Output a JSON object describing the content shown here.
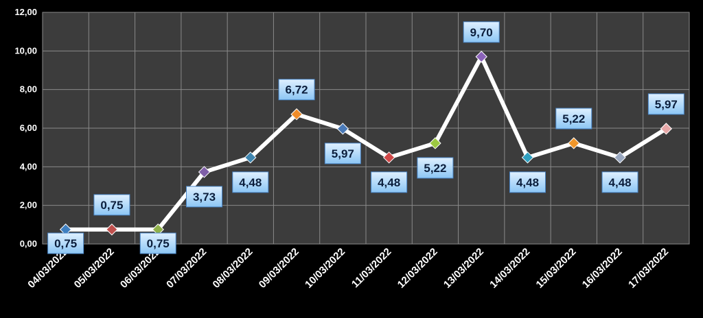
{
  "chart_data": {
    "type": "line",
    "categories": [
      "04/03/2022",
      "05/03/2022",
      "06/03/2022",
      "07/03/2022",
      "08/03/2022",
      "09/03/2022",
      "10/03/2022",
      "11/03/2022",
      "12/03/2022",
      "13/03/2022",
      "14/03/2022",
      "15/03/2022",
      "16/03/2022",
      "17/03/2022"
    ],
    "values": [
      0.75,
      0.75,
      0.75,
      3.73,
      4.48,
      6.72,
      5.97,
      4.48,
      5.22,
      9.7,
      4.48,
      5.22,
      4.48,
      5.97
    ],
    "data_labels": [
      "0,75",
      "0,75",
      "0,75",
      "3,73",
      "4,48",
      "6,72",
      "5,97",
      "4,48",
      "5,22",
      "9,70",
      "4,48",
      "5,22",
      "4,48",
      "5,97"
    ],
    "y_tick_labels": [
      "0,00",
      "2,00",
      "4,00",
      "6,00",
      "8,00",
      "10,00",
      "12,00"
    ],
    "ylim": [
      0,
      12
    ],
    "y_tick_step": 2,
    "title": "",
    "xlabel": "",
    "ylabel": "",
    "grid": true,
    "legend": "none",
    "colors": {
      "background": "#000000",
      "plot_area": "#3c3c3c",
      "grid": "#8a8a8a",
      "line": "#ffffff",
      "label_box_top": "#dff0ff",
      "label_box_bottom": "#8cc6f4",
      "label_box_border": "#4a86c8",
      "label_text": "#0b1e3c"
    },
    "marker_colors": [
      "#3f7fc0",
      "#c0504d",
      "#8fb04a",
      "#7f5fa8",
      "#3f86b0",
      "#f08c2a",
      "#4a7ab8",
      "#d04848",
      "#9cc840",
      "#8a62b8",
      "#30a0c0",
      "#f0962a",
      "#9aa8c0",
      "#e8a8a8"
    ]
  }
}
